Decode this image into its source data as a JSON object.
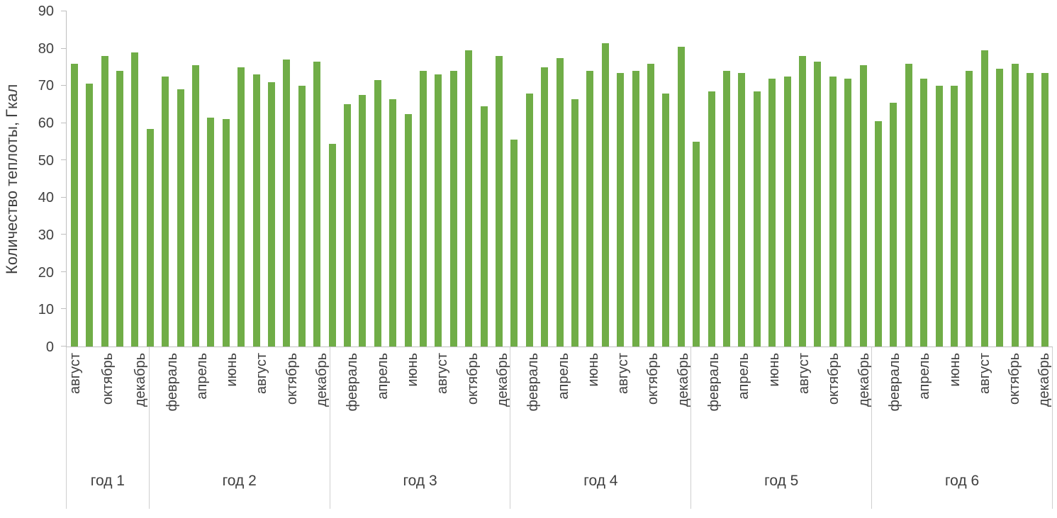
{
  "chart_data": {
    "type": "bar",
    "title": "",
    "xlabel": "",
    "ylabel": "Количество теплоты, Гкал",
    "ylim": [
      0,
      90
    ],
    "yticks": [
      0,
      10,
      20,
      30,
      40,
      50,
      60,
      70,
      80,
      90
    ],
    "grid": false,
    "legend": null,
    "bar_color": "#70AD47",
    "axis_color": "#BFBFBF",
    "text_color": "#404040",
    "groups": [
      {
        "label": "год 1",
        "values": [
          76,
          70.5,
          78,
          74,
          79
        ],
        "tick_labels": [
          "август",
          "",
          "октябрь",
          "",
          "декабрь"
        ]
      },
      {
        "label": "год 2",
        "values": [
          58.5,
          72.5,
          69,
          75.5,
          61.5,
          61,
          75,
          73,
          71,
          77,
          70,
          76.5
        ],
        "tick_labels": [
          "",
          "февраль",
          "",
          "апрель",
          "",
          "июнь",
          "",
          "август",
          "",
          "октябрь",
          "",
          "декабрь"
        ]
      },
      {
        "label": "год 3",
        "values": [
          54.5,
          65,
          67.5,
          71.5,
          66.5,
          62.5,
          74,
          73,
          74,
          79.5,
          64.5,
          78
        ],
        "tick_labels": [
          "",
          "февраль",
          "",
          "апрель",
          "",
          "июнь",
          "",
          "август",
          "",
          "октябрь",
          "",
          "декабрь"
        ]
      },
      {
        "label": "год 4",
        "values": [
          55.5,
          68,
          75,
          77.5,
          66.5,
          74,
          81.5,
          73.5,
          74,
          76,
          68,
          80.5
        ],
        "tick_labels": [
          "",
          "февраль",
          "",
          "апрель",
          "",
          "июнь",
          "",
          "август",
          "",
          "октябрь",
          "",
          "декабрь"
        ]
      },
      {
        "label": "год 5",
        "values": [
          55,
          68.5,
          74,
          73.5,
          68.5,
          72,
          72.5,
          78,
          76.5,
          72.5,
          72,
          75.5
        ],
        "tick_labels": [
          "",
          "февраль",
          "",
          "апрель",
          "",
          "июнь",
          "",
          "август",
          "",
          "октябрь",
          "",
          "декабрь"
        ]
      },
      {
        "label": "год 6",
        "values": [
          60.5,
          65.5,
          76,
          72,
          70,
          70,
          74,
          79.5,
          74.5,
          76,
          73.5,
          73.5
        ],
        "tick_labels": [
          "",
          "февраль",
          "",
          "апрель",
          "",
          "июнь",
          "",
          "август",
          "",
          "октябрь",
          "",
          "декабрь"
        ]
      }
    ]
  }
}
